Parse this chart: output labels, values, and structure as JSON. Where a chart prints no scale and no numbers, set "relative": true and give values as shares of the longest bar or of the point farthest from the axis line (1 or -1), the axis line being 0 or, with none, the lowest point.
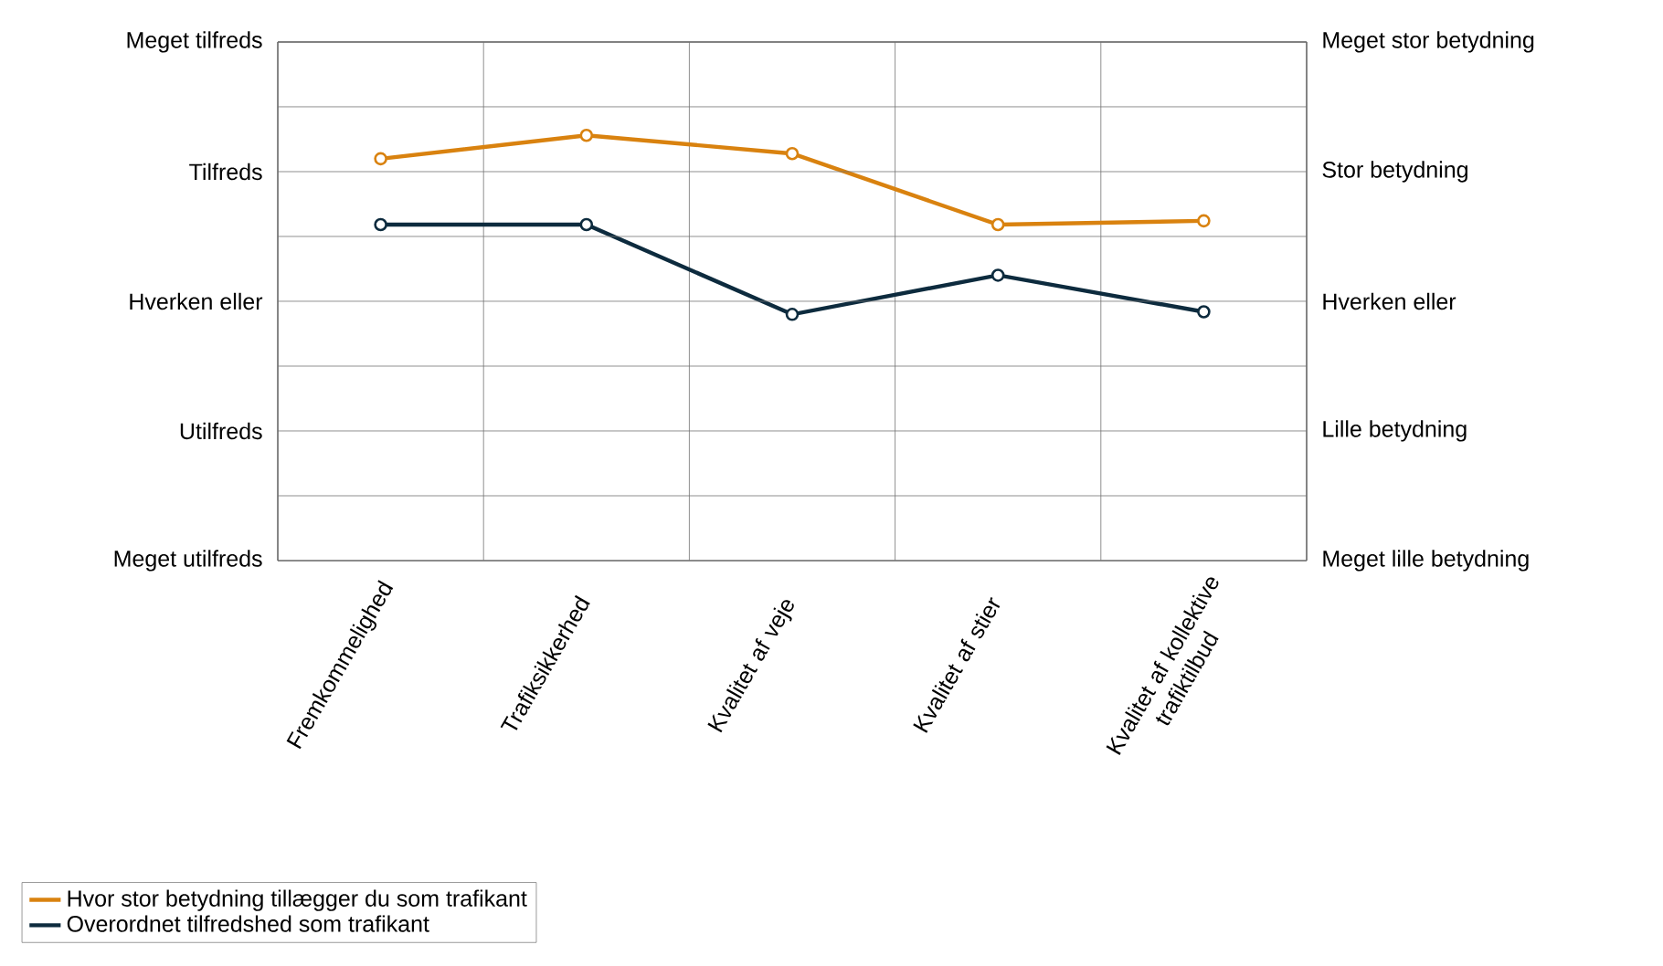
{
  "chart_data": {
    "type": "line",
    "relative": true,
    "categories": [
      "Fremkommelighed",
      "Trafiksikkerhed",
      "Kvalitet af veje",
      "Kvalitet af stier",
      "Kvalitet af kollektive trafiktilbud"
    ],
    "series": [
      {
        "name": "Hvor stor betydning tillægger du som trafikant",
        "color": "#d9820f",
        "values": [
          0.945,
          1,
          0.957,
          0.79,
          0.799
        ]
      },
      {
        "name": "Overordnet tilfredshed som trafikant",
        "color": "#0d2b3e",
        "values": [
          0.79,
          0.79,
          0.579,
          0.671,
          0.585
        ]
      }
    ],
    "ref_lines": [
      {
        "axis": "y",
        "value": 0.1524,
        "label": null
      },
      {
        "axis": "y",
        "value": 0.3049,
        "label": "Utilfreds"
      },
      {
        "axis": "y",
        "value": 0.4573,
        "label": null
      },
      {
        "axis": "y",
        "value": 0.6098,
        "label": "Hverken eller"
      },
      {
        "axis": "y",
        "value": 0.7622,
        "label": null
      },
      {
        "axis": "y",
        "value": 0.9146,
        "label": "Tilfreds"
      },
      {
        "axis": "y",
        "value": 1.0671,
        "label": null
      },
      {
        "axis": "y",
        "value": 1.2195,
        "label": "Meget tilfreds"
      }
    ],
    "annotations": [
      "Meget utilfreds",
      "Meget lille betydning",
      "Lille betydning",
      "Hverken eller",
      "Stor betydning",
      "Meget stor betydning"
    ],
    "grid": "x",
    "legend": "bottom left",
    "marker": "circle",
    "line_style": "solid"
  }
}
